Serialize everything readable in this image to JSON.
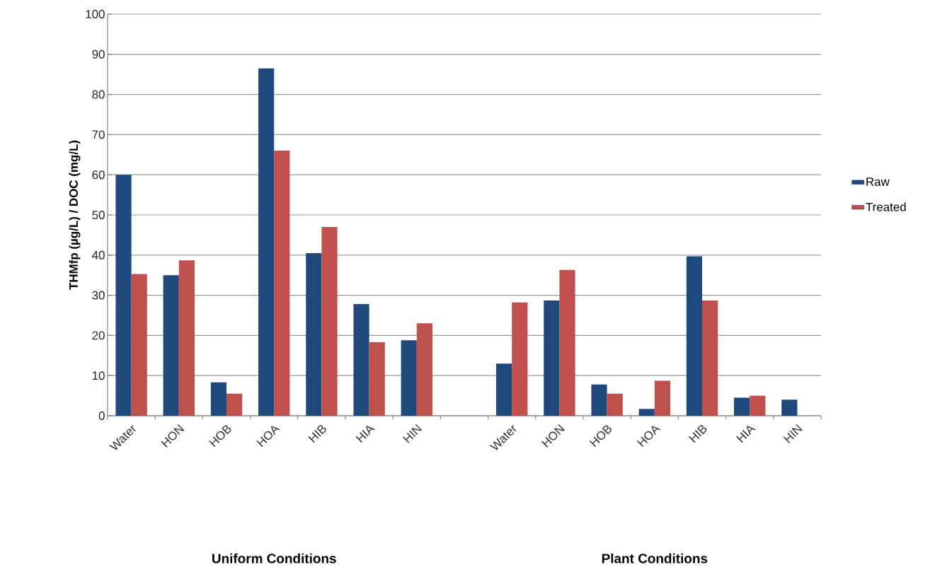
{
  "chart_data": {
    "type": "bar",
    "ylabel": "THMfp (µg/L) / DOC (mg/L)",
    "categories": [
      "Water",
      "HON",
      "HOB",
      "HOA",
      "HIB",
      "HIA",
      "HIN",
      null,
      "Water",
      "HON",
      "HOB",
      "HOA",
      "HIB",
      "HIA",
      "HIN"
    ],
    "series": [
      {
        "name": "Raw",
        "color": "#1f497d",
        "values": [
          60,
          35,
          8.3,
          86.5,
          40.5,
          27.8,
          18.8,
          null,
          13,
          28.7,
          7.8,
          1.7,
          39.7,
          4.5,
          4
        ]
      },
      {
        "name": "Treated",
        "color": "#c0504d",
        "values": [
          35.3,
          38.7,
          5.5,
          66,
          47,
          18.3,
          23,
          null,
          28.2,
          36.3,
          5.5,
          8.7,
          28.7,
          5,
          null
        ]
      }
    ],
    "ylim": [
      0,
      100
    ],
    "yticks": [
      0,
      10,
      20,
      30,
      40,
      50,
      60,
      70,
      80,
      90,
      100
    ],
    "grid": "y",
    "legend": "right",
    "annotations": [
      "Uniform Conditions",
      "Plant Conditions"
    ]
  }
}
